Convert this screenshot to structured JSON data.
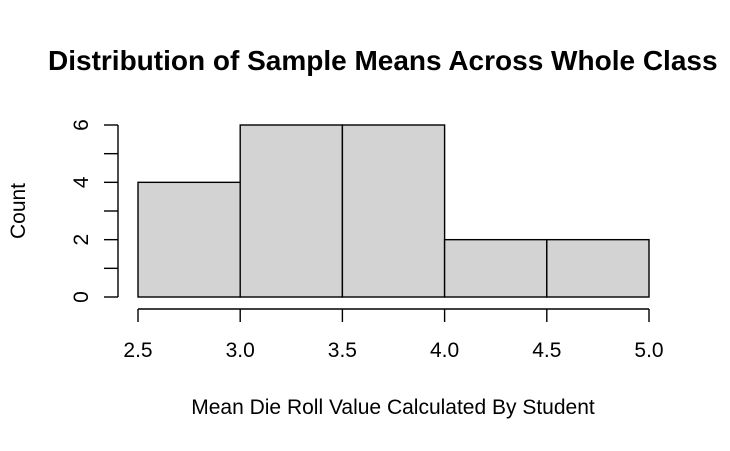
{
  "chart_data": {
    "type": "bar",
    "subtype": "histogram",
    "title": "Distribution of Sample Means Across Whole Class",
    "xlabel": "Mean Die Roll Value Calculated By Student",
    "ylabel": "Count",
    "bins": [
      {
        "start": 2.5,
        "end": 3.0,
        "count": 4
      },
      {
        "start": 3.0,
        "end": 3.5,
        "count": 6
      },
      {
        "start": 3.5,
        "end": 4.0,
        "count": 6
      },
      {
        "start": 4.0,
        "end": 4.5,
        "count": 2
      },
      {
        "start": 4.5,
        "end": 5.0,
        "count": 2
      }
    ],
    "xlim": [
      2.5,
      5.0
    ],
    "ylim": [
      0,
      6
    ],
    "x_ticks": [
      "2.5",
      "3.0",
      "3.5",
      "4.0",
      "4.5",
      "5.0"
    ],
    "y_ticks": [
      0,
      1,
      2,
      3,
      4,
      5,
      6
    ],
    "y_tick_labels": [
      "0",
      "",
      "2",
      "",
      "4",
      "",
      "6"
    ],
    "bar_color": "#d3d3d3",
    "edge_color": "#000000",
    "grid": false,
    "legend": "none"
  }
}
